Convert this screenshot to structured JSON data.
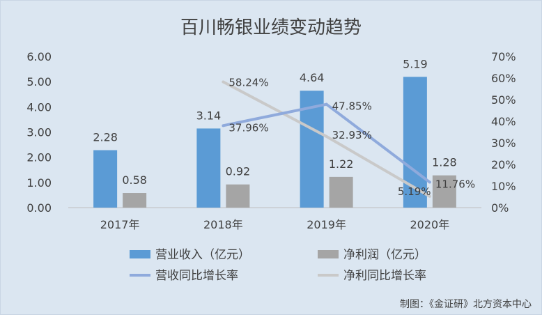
{
  "chart_data": {
    "type": "bar+line",
    "title": "百川畅银业绩变动趋势",
    "categories": [
      "2017年",
      "2018年",
      "2019年",
      "2020年"
    ],
    "bar_series": [
      {
        "name": "营业收入（亿元）",
        "values": [
          2.28,
          3.14,
          4.64,
          5.19
        ],
        "labels": [
          "2.28",
          "3.14",
          "4.64",
          "5.19"
        ],
        "color": "#5b9bd5"
      },
      {
        "name": "净利润（亿元）",
        "values": [
          0.58,
          0.92,
          1.22,
          1.28
        ],
        "labels": [
          "0.58",
          "0.92",
          "1.22",
          "1.28"
        ],
        "color": "#a5a5a5"
      }
    ],
    "line_series": [
      {
        "name": "营收同比增长率",
        "x_index": [
          1,
          2,
          3
        ],
        "values": [
          37.96,
          47.85,
          11.76
        ],
        "labels": [
          "37.96%",
          "47.85%",
          "11.76%"
        ],
        "color": "#8faadc"
      },
      {
        "name": "净利同比增长率",
        "x_index": [
          1,
          2,
          3
        ],
        "values": [
          58.24,
          32.93,
          5.19
        ],
        "labels": [
          "58.24%",
          "32.93%",
          "5.19%"
        ],
        "color": "#c9c9c9"
      }
    ],
    "left_axis": {
      "ylim": [
        0,
        6
      ],
      "ticks": [
        "0.00",
        "1.00",
        "2.00",
        "3.00",
        "4.00",
        "5.00",
        "6.00"
      ]
    },
    "right_axis": {
      "ylim": [
        0,
        70
      ],
      "ticks": [
        "0%",
        "10%",
        "20%",
        "30%",
        "40%",
        "50%",
        "60%",
        "70%"
      ]
    },
    "grid": false,
    "legend_position": "bottom"
  },
  "footer": {
    "source": "制图：《金证研》北方资本中心"
  }
}
